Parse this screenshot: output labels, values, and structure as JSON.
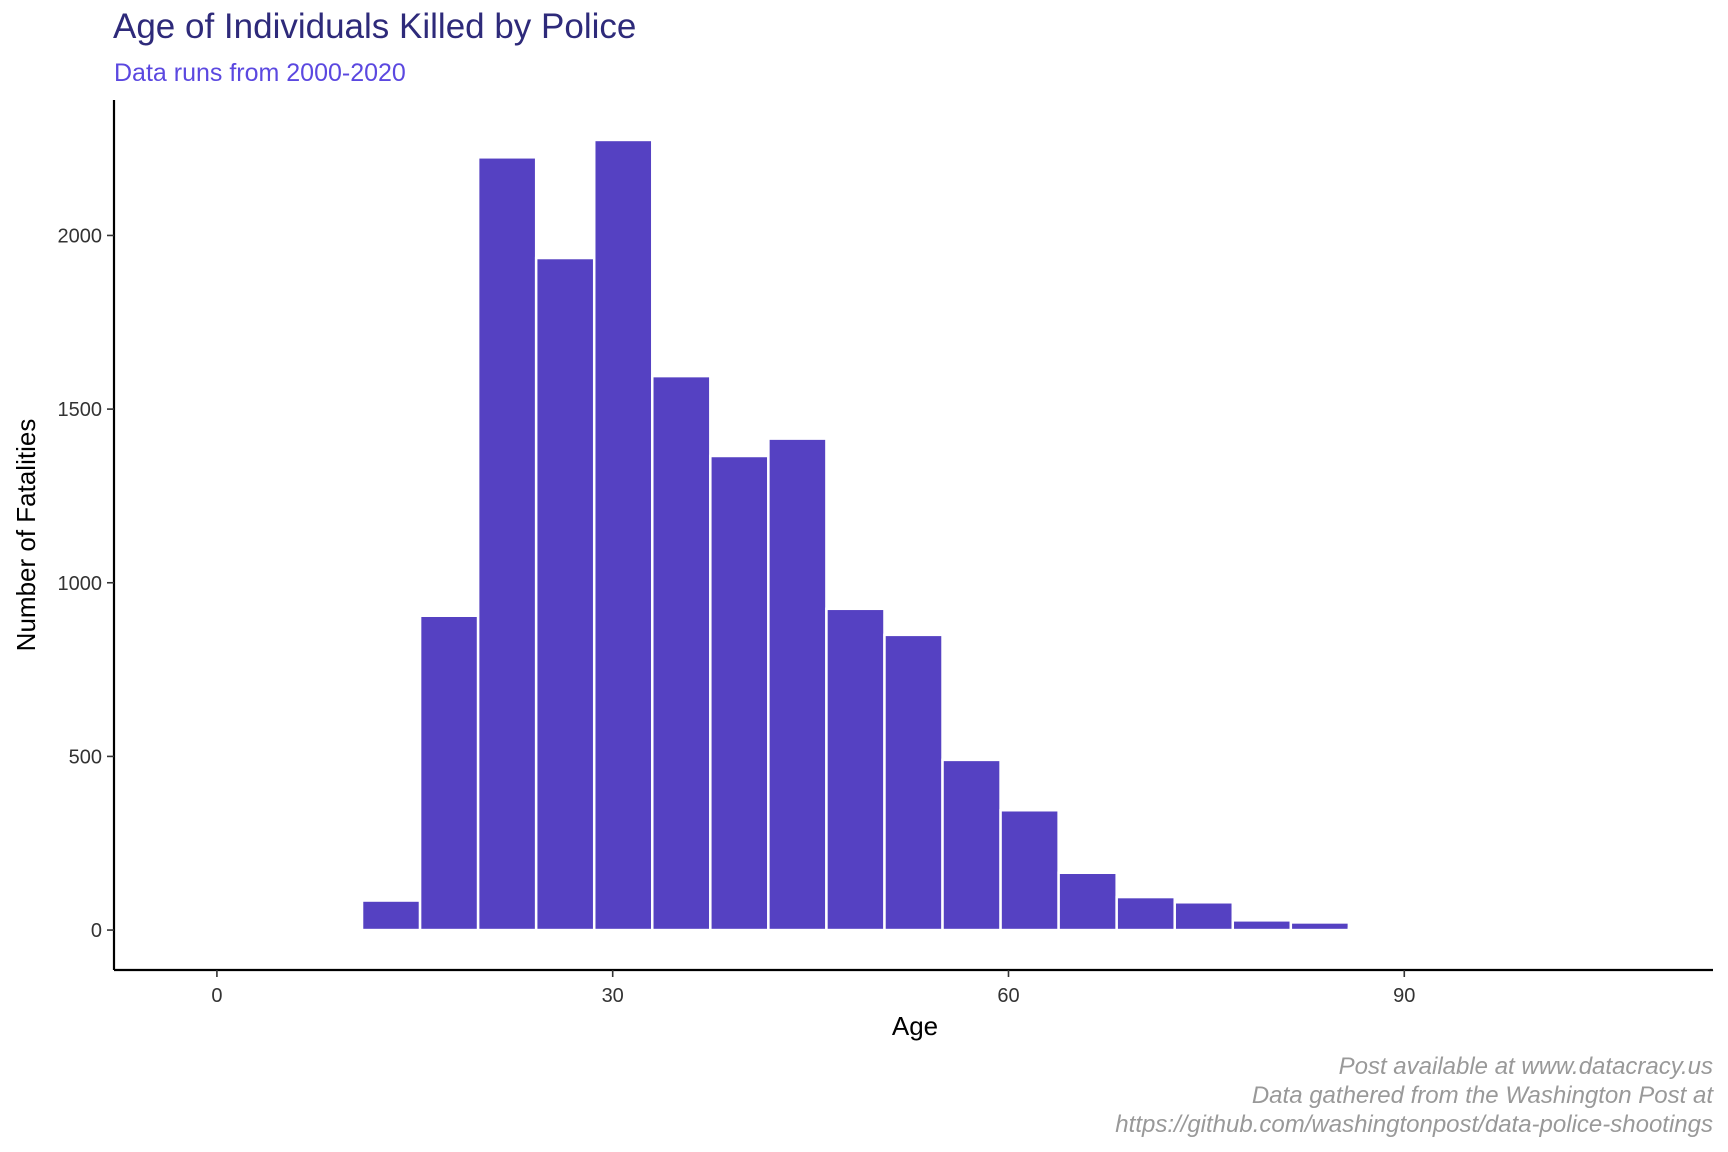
{
  "chart_data": {
    "type": "bar",
    "title": "Age of Individuals Killed by Police",
    "subtitle": "Data runs from 2000-2020",
    "xlabel": "Age",
    "ylabel": "Number of Fatalities",
    "caption": [
      "Post available at www.datacracy.us",
      "Data gathered from the Washington Post at",
      "https://github.com/washingtonpost/data-police-shootings"
    ],
    "x_ticks": [
      0,
      30,
      60,
      90
    ],
    "y_ticks": [
      0,
      500,
      1000,
      1500,
      2000
    ],
    "xlim": [
      -7.8,
      113.4
    ],
    "ylim": [
      -115,
      2390
    ],
    "bin_width": 4.4,
    "bins": [
      {
        "start": 2.2,
        "end": 6.6,
        "count": 3
      },
      {
        "start": 6.6,
        "end": 11.0,
        "count": 4
      },
      {
        "start": 11.0,
        "end": 15.4,
        "count": 85
      },
      {
        "start": 15.4,
        "end": 19.8,
        "count": 905
      },
      {
        "start": 19.8,
        "end": 24.2,
        "count": 2225
      },
      {
        "start": 24.2,
        "end": 28.6,
        "count": 1935
      },
      {
        "start": 28.6,
        "end": 33.0,
        "count": 2275
      },
      {
        "start": 33.0,
        "end": 37.4,
        "count": 1595
      },
      {
        "start": 37.4,
        "end": 41.8,
        "count": 1365
      },
      {
        "start": 41.8,
        "end": 46.2,
        "count": 1415
      },
      {
        "start": 46.2,
        "end": 50.6,
        "count": 925
      },
      {
        "start": 50.6,
        "end": 55.0,
        "count": 850
      },
      {
        "start": 55.0,
        "end": 59.4,
        "count": 490
      },
      {
        "start": 59.4,
        "end": 63.8,
        "count": 345
      },
      {
        "start": 63.8,
        "end": 68.2,
        "count": 165
      },
      {
        "start": 68.2,
        "end": 72.6,
        "count": 95
      },
      {
        "start": 72.6,
        "end": 77.0,
        "count": 80
      },
      {
        "start": 77.0,
        "end": 81.4,
        "count": 28
      },
      {
        "start": 81.4,
        "end": 85.8,
        "count": 22
      },
      {
        "start": 85.8,
        "end": 90.2,
        "count": 4
      }
    ],
    "bar_color": "#5541c2",
    "bar_outline": "#ffffff",
    "grid": false,
    "legend": "none"
  }
}
